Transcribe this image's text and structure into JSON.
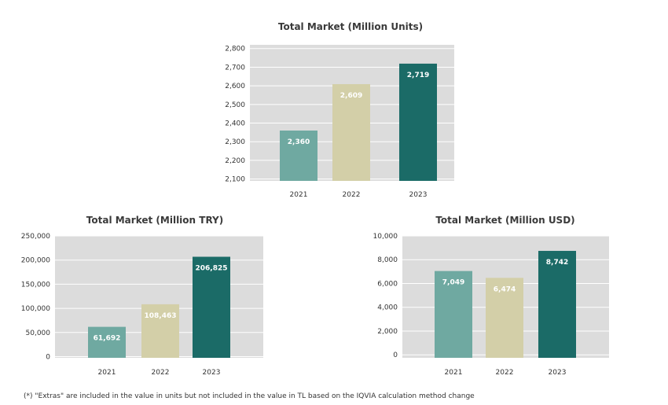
{
  "colors": {
    "plot_bg": "#dcdcdc",
    "grid": "#ffffff",
    "bars": [
      "#6fa9a1",
      "#d3cfa8",
      "#1b6b67"
    ]
  },
  "chart_data": [
    {
      "type": "bar",
      "title": "Total Market (Million Units)",
      "categories": [
        "2021",
        "2022",
        "2023"
      ],
      "values": [
        2360,
        2609,
        2719
      ],
      "value_labels": [
        "2,360",
        "2,609",
        "2,719"
      ],
      "ylim": [
        2090,
        2820
      ],
      "yticks": [
        2100,
        2200,
        2300,
        2400,
        2500,
        2600,
        2700,
        2800
      ],
      "ytick_labels": [
        "2,100",
        "2,200",
        "2,300",
        "2,400",
        "2,500",
        "2,600",
        "2,700",
        "2,800"
      ],
      "grid": true
    },
    {
      "type": "bar",
      "title": "Total Market (Million TRY)",
      "categories": [
        "2021",
        "2022",
        "2023"
      ],
      "values": [
        61692,
        108463,
        206825
      ],
      "value_labels": [
        "61,692",
        "108,463",
        "206,825"
      ],
      "ylim": [
        -2500,
        250000
      ],
      "yticks": [
        0,
        50000,
        100000,
        150000,
        200000,
        250000
      ],
      "ytick_labels": [
        "0",
        "50,000",
        "100,000",
        "150,000",
        "200,000",
        "250,000"
      ],
      "grid": true
    },
    {
      "type": "bar",
      "title": "Total Market (Million USD)",
      "categories": [
        "2021",
        "2022",
        "2023"
      ],
      "values": [
        7049,
        6474,
        8742
      ],
      "value_labels": [
        "7,049",
        "6,474",
        "8,742"
      ],
      "ylim": [
        -250,
        10000
      ],
      "yticks": [
        0,
        2000,
        4000,
        6000,
        8000,
        10000
      ],
      "ytick_labels": [
        "0",
        "2,000",
        "4,000",
        "6,000",
        "8,000",
        "10,000"
      ],
      "grid": true
    }
  ],
  "footnote": "(*) \"Extras\" are included in the value in units but not included in the value in TL based on the IQVIA calculation method change"
}
